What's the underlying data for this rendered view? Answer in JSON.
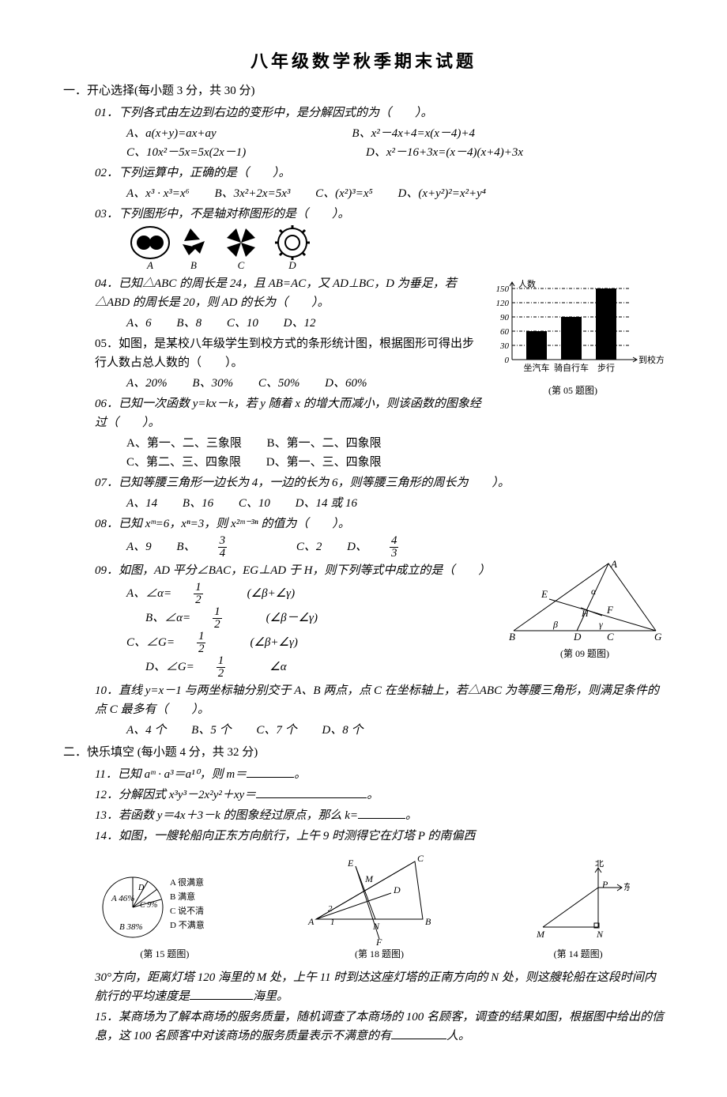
{
  "title": "八年级数学秋季期末试题",
  "section1_heading": "一．开心选择(每小题 3 分，共 30 分)",
  "paper": {
    "q01": {
      "stem": "01．下列各式由左边到右边的变形中，是分解因式的为（　　）。",
      "A": "A、a(x+y)=ax+ay",
      "B": "B、x²－4x+4=x(x－4)+4",
      "C": "C、10x²－5x=5x(2x－1)",
      "D": "D、x²－16+3x=(x－4)(x+4)+3x"
    },
    "q02": {
      "stem": "02．下列运算中，正确的是（　　）。",
      "A": "A、x³ · x³=x⁶",
      "B": "B、3x²+2x=5x³",
      "C": "C、(x²)³=x⁵",
      "D": "D、(x+y²)²=x²+y⁴"
    },
    "q03": {
      "stem": "03．下列图形中，不是轴对称图形的是（　　）。",
      "labels": [
        "A",
        "B",
        "C",
        "D"
      ]
    },
    "q04": {
      "stem": "04．已知△ABC 的周长是 24，且 AB=AC，又 AD⊥BC，D 为垂足，若△ABD 的周长是 20，则 AD 的长为（　　）。",
      "A": "A、6",
      "B": "B、8",
      "C": "C、10",
      "D": "D、12"
    },
    "q05": {
      "stem": "05．如图，是某校八年级学生到校方式的条形统计图，根据图形可得出步行人数占总人数的（　　）。",
      "A": "A、20%",
      "B": "B、30%",
      "C": "C、50%",
      "D": "D、60%"
    },
    "q06": {
      "stem": "06．已知一次函数 y=kx－k，若 y 随着 x 的增大而减小，则该函数的图象经过（　　）。",
      "A": "A、第一、二、三象限",
      "B": "B、第一、二、四象限",
      "C": "C、第二、三、四象限",
      "D": "D、第一、三、四象限"
    },
    "q07": {
      "stem": "07．已知等腰三角形一边长为 4，一边的长为 6，则等腰三角形的周长为　　）。",
      "A": "A、14",
      "B": "B、16",
      "C": "C、10",
      "D": "D、14 或 16"
    },
    "q08": {
      "stem_pre": "08．已知 xᵐ=6，xⁿ=3，则 x²ᵐ⁻³ⁿ 的值为（　　）。",
      "A": "A、9",
      "B_pre": "B、",
      "C": "C、2",
      "D_pre": "D、"
    },
    "q09": {
      "stem": "09．如图，AD 平分∠BAC，EG⊥AD 于 H，则下列等式中成立的是（　　）",
      "A_pre": "A、∠α=",
      "A_post": "(∠β+∠γ)",
      "B_pre": "B、∠α=",
      "B_post": "(∠β－∠γ)",
      "C_pre": "C、∠G=",
      "C_post": "(∠β+∠γ)",
      "D_pre": "D、∠G=",
      "D_post": "∠α"
    },
    "q10": {
      "stem": "10．直线 y=x－1 与两坐标轴分别交于 A、B 两点，点 C 在坐标轴上，若△ABC 为等腰三角形，则满足条件的点 C 最多有（　　）。",
      "A": "A、4 个",
      "B": "B、5 个",
      "C": "C、7 个",
      "D": "D、8 个"
    }
  },
  "section2_heading": "二．快乐填空 (每小题 4 分，共 32 分)",
  "fill": {
    "q11": "11．已知 aᵐ · a³＝a¹⁰，则 m＝",
    "q12": "12．分解因式 x³y³－2x²y²＋xy＝",
    "q13": "13．若函数 y＝4x＋3－k 的图象经过原点，那么 k=",
    "q14": "14．如图，一艘轮船向正东方向航行，上午 9 时测得它在灯塔 P 的南偏西",
    "q14b": "30°方向，距离灯塔 120 海里的 M 处，上午 11 时到达这座灯塔的正南方向的 N 处，则这艘轮船在这段时间内航行的平均速度是",
    "q14c": "海里。",
    "q15": "15．某商场为了解本商场的服务质量，随机调查了本商场的 100 名顾客，调查的结果如图，根据图中给出的信息，这 100 名顾客中对该商场的服务质量表示不满意的有",
    "q15b": "人。"
  },
  "chart05": {
    "type": "bar",
    "y_label": "人数",
    "x_label": "到校方式",
    "categories": [
      "坐汽车",
      "骑自行车",
      "步行"
    ],
    "values": [
      60,
      90,
      150
    ],
    "ylim": [
      0,
      150
    ],
    "yticks": [
      30,
      60,
      90,
      120,
      150
    ],
    "bar_color": "#000000",
    "axis_color": "#000000",
    "grid_style": "dash-dot",
    "caption": "(第 05 题图)",
    "label_fontsize": 11
  },
  "fig09": {
    "caption": "(第 09 题图)",
    "points": [
      "A",
      "B",
      "C",
      "D",
      "E",
      "F",
      "G",
      "H"
    ],
    "greek": [
      "α",
      "β",
      "γ"
    ]
  },
  "fig15": {
    "caption": "(第 15 题图)",
    "labels": {
      "A": "A 很满意",
      "B": "B 满意",
      "C": "C 说不清",
      "D": "D 不满意"
    },
    "pct": {
      "A": "A 46%",
      "B": "B 38%",
      "C": "C 9%",
      "D": "D"
    }
  },
  "fig18": {
    "caption": "(第 18 题图)",
    "points": [
      "A",
      "B",
      "C",
      "D",
      "E",
      "F",
      "M",
      "N",
      "1",
      "2"
    ]
  },
  "fig14": {
    "caption": "(第 14 题图)",
    "points": [
      "M",
      "N",
      "P"
    ],
    "dir": {
      "n": "北",
      "e": "东"
    }
  }
}
